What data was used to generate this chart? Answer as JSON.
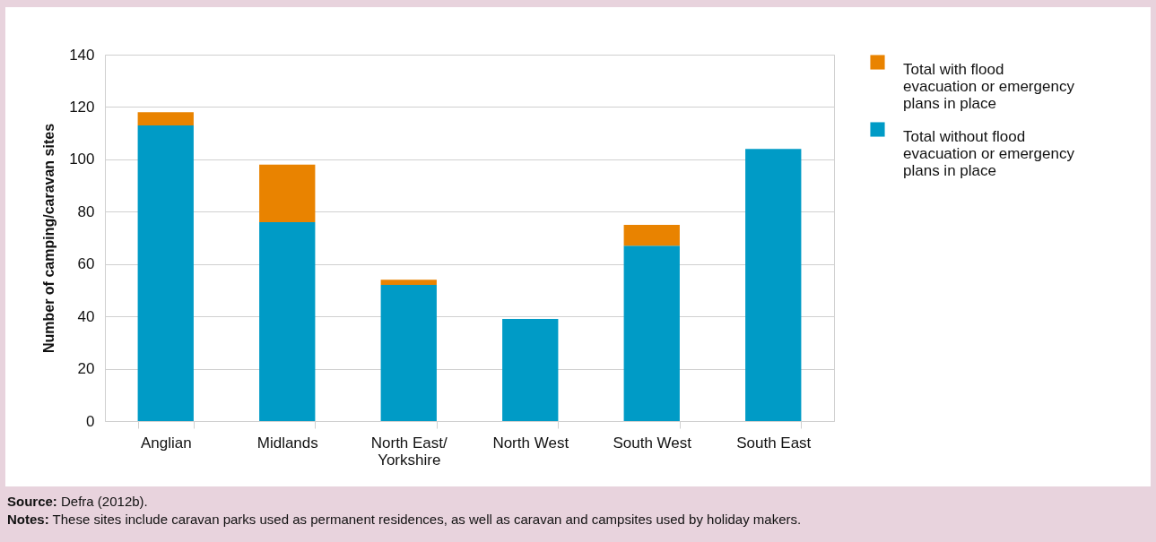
{
  "chart_data": {
    "type": "bar",
    "stacked": true,
    "ylabel": "Number of camping/caravan sites",
    "categories": [
      "Anglian",
      "Midlands",
      "North East/ Yorkshire",
      "North West",
      "South West",
      "South East"
    ],
    "series": [
      {
        "name": "Total without flood evacuation or emergency plans in place",
        "color": "#009bc6",
        "values": [
          113,
          76,
          52,
          39,
          67,
          104
        ]
      },
      {
        "name": "Total with flood evacuation or emergency plans in place",
        "color": "#e98300",
        "values": [
          5,
          22,
          2,
          null,
          8,
          null
        ]
      }
    ],
    "ylim": [
      0,
      140
    ],
    "yticks": [
      0,
      20,
      40,
      60,
      80,
      100,
      120,
      140
    ],
    "grid": "y",
    "legend": "right",
    "annotations": [
      "Source: Defra (2012b).",
      "Notes: These sites include caravan parks used as permanent residences, as well as caravan and campsites used by holiday makers."
    ]
  }
}
